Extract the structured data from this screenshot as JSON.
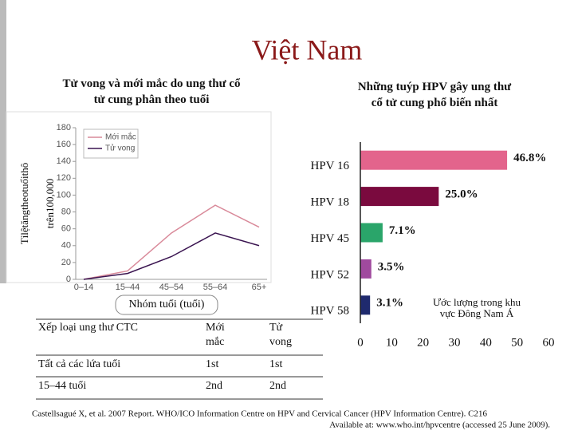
{
  "title": "Việt Nam",
  "chart_data": [
    {
      "type": "line",
      "title": "Tử vong và mới mắc do ung thư cổ tử cung phân theo tuổi",
      "ylabel": [
        "Tỉlệtăngtheotuổithô",
        "trên100,000"
      ],
      "xlabel": "Nhóm tuổi (tuổi)",
      "categories": [
        "0–14",
        "15–44",
        "45–54",
        "55–64",
        "65+"
      ],
      "series": [
        {
          "name": "Mới mắc",
          "color": "#d98a9a",
          "values": [
            0,
            10,
            55,
            88,
            62
          ]
        },
        {
          "name": "Tử vong",
          "color": "#3a1450",
          "values": [
            0,
            7,
            27,
            55,
            40
          ]
        }
      ],
      "ylim": [
        0,
        180
      ],
      "yticks": [
        0,
        20,
        40,
        60,
        80,
        100,
        120,
        140,
        160,
        180
      ],
      "grid": false,
      "legend": "top-left"
    },
    {
      "type": "hbar",
      "title": "Những tuýp HPV gây ung thư cổ tử cung phổ biến nhất",
      "categories": [
        "HPV 16",
        "HPV 18",
        "HPV 45",
        "HPV 52",
        "HPV 58"
      ],
      "values": [
        46.8,
        25.0,
        7.1,
        3.5,
        3.1
      ],
      "value_labels": [
        "46.8%",
        "25.0%",
        "7.1%",
        "3.5%",
        "3.1%"
      ],
      "colors": [
        "#e3648c",
        "#7a0a3e",
        "#2aa56a",
        "#a04a9e",
        "#1f2a6e"
      ],
      "annotation": "Ước lượng trong khu vực Đông Nam Á",
      "xlim": [
        0,
        60
      ],
      "xticks": [
        0,
        10,
        20,
        30,
        40,
        50,
        60
      ]
    }
  ],
  "table": {
    "header": [
      "Xếp loại ung thư CTC",
      "Mới mắc",
      "Tử vong"
    ],
    "rows": [
      [
        "Tất cả các lứa tuổi",
        "1st",
        "1st"
      ],
      [
        "15–44 tuổi",
        "2nd",
        "2nd"
      ]
    ]
  },
  "citation": [
    "Castellsagué X, et al. 2007 Report. WHO/ICO Information Centre on HPV and Cervical Cancer (HPV Information Centre). C216",
    "Available at: www.who.int/hpvcentre (accessed 25 June 2009)."
  ]
}
